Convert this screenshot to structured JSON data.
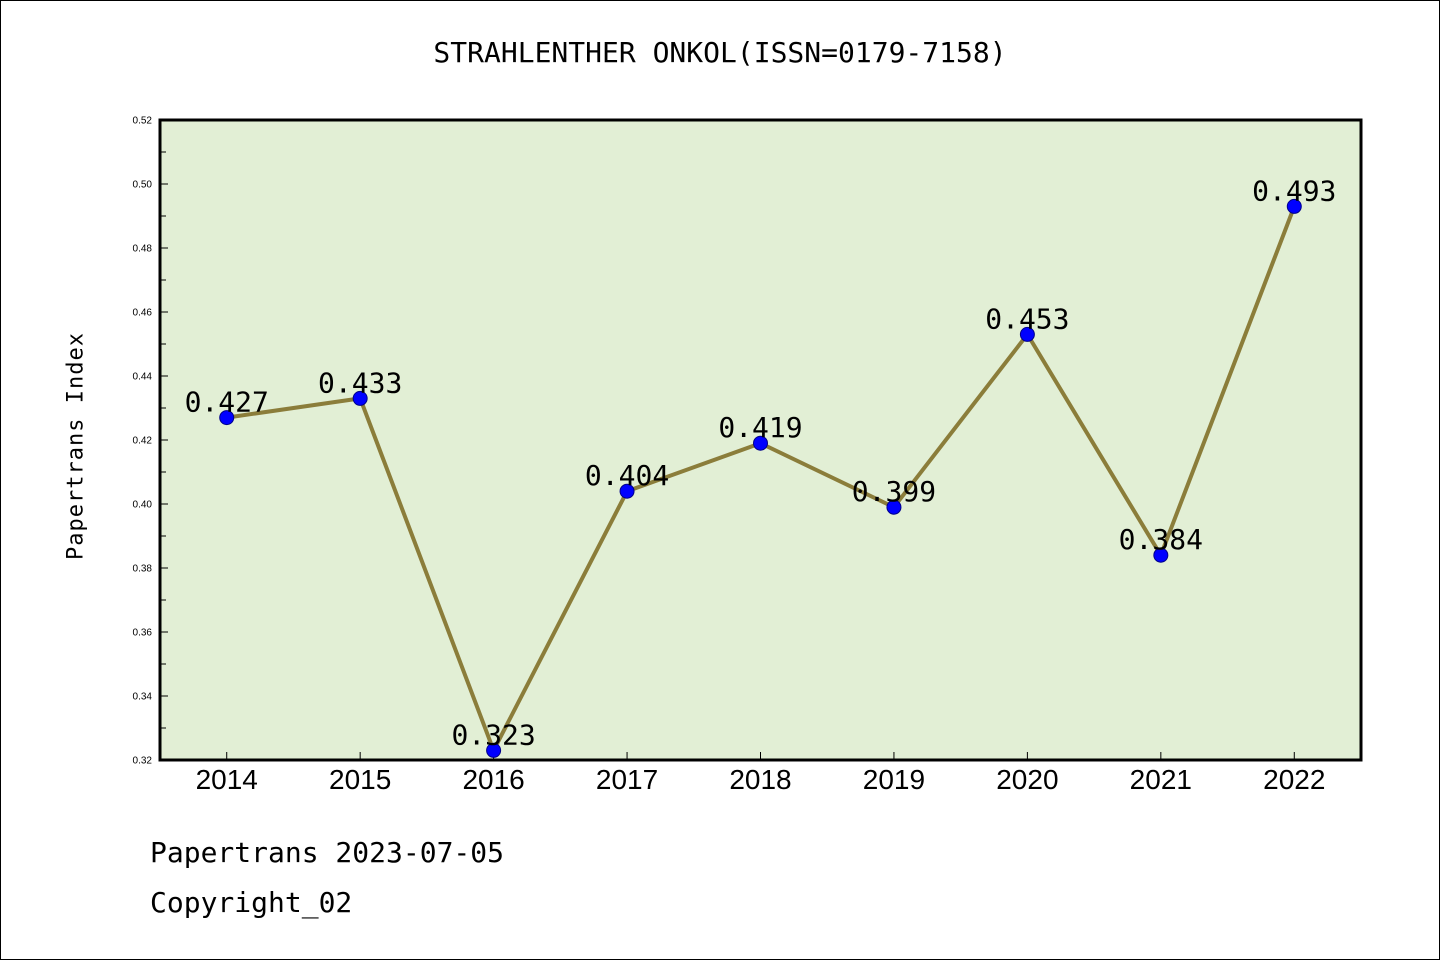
{
  "header": {
    "title": "STRAHLENTHER ONKOL(ISSN=0179-7158)"
  },
  "footer": {
    "line1": "Papertrans 2023-07-05",
    "line2": "Copyright_02"
  },
  "chart_data": {
    "type": "line",
    "title": "STRAHLENTHER ONKOL(ISSN=0179-7158)",
    "xlabel": "",
    "ylabel": "Papertrans Index",
    "x": [
      "2014",
      "2015",
      "2016",
      "2017",
      "2018",
      "2019",
      "2020",
      "2021",
      "2022"
    ],
    "series": [
      {
        "values": [
          0.427,
          0.433,
          0.323,
          0.404,
          0.419,
          0.399,
          0.453,
          0.384,
          0.493
        ],
        "labels": [
          "0.427",
          "0.433",
          "0.323",
          "0.404",
          "0.419",
          "0.399",
          "0.453",
          "0.384",
          "0.493"
        ]
      }
    ],
    "ylim": [
      0.32,
      0.52
    ],
    "yticks": [
      "0.32",
      "0.34",
      "0.36",
      "0.38",
      "0.40",
      "0.42",
      "0.44",
      "0.46",
      "0.48",
      "0.50",
      "0.52"
    ],
    "grid": false,
    "legend": "none",
    "colors": {
      "plot_background": "#e2efd5",
      "line": "#8b7d3a",
      "marker": "#0000ff"
    }
  }
}
